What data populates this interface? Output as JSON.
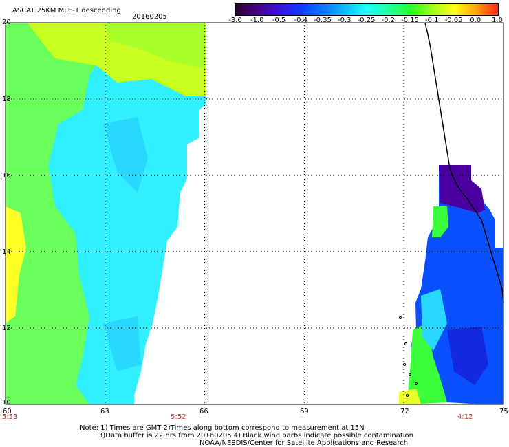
{
  "header": {
    "title": "ASCAT 25KM MLE-1 descending",
    "date": "20160205"
  },
  "colorbar": {
    "labels": [
      "-3.0",
      "-1.0",
      "-0.5",
      "-0.4",
      "-0.35",
      "-0.3",
      "-0.25",
      "-0.2",
      "-0.15",
      "-0.1",
      "-0.05",
      "0.0",
      "1.0"
    ],
    "colors": [
      "#2a0030",
      "#4a008a",
      "#3a14d6",
      "#0a3cff",
      "#0a78ff",
      "#12b8ff",
      "#20ffff",
      "#22ff9c",
      "#28ff28",
      "#9cff1e",
      "#ffff14",
      "#ffa014",
      "#ff2a14"
    ]
  },
  "lat_labels": [
    "20",
    "18",
    "16",
    "14",
    "12",
    "10"
  ],
  "lon_labels": [
    "60",
    "63",
    "66",
    "69",
    "72",
    "75"
  ],
  "times": [
    "5:53",
    "5:52",
    "4:12"
  ],
  "notes": {
    "line1": "Note: 1) Times are GMT 2)Times along bottom correspond to measurement at 15N",
    "line2": "3)Data buffer is 22 hrs from 20160205 4) Black wind barbs indicate possible contamination",
    "line3": "NOAA/NESDIS/Center for Satellite Applications and Research"
  },
  "map": {
    "lon_range": [
      60,
      75
    ],
    "lat_range": [
      10,
      20
    ],
    "colors": {
      "yellow_green": "#c8ff1e",
      "green": "#3cff3c",
      "light_green": "#6aff5a",
      "cyan": "#30f0ff",
      "light_blue": "#28d8ff",
      "blue": "#0a50ff",
      "dark_blue": "#1428e0",
      "purple": "#4a00a0",
      "yellow": "#ffff28",
      "grid": "#000000"
    }
  }
}
